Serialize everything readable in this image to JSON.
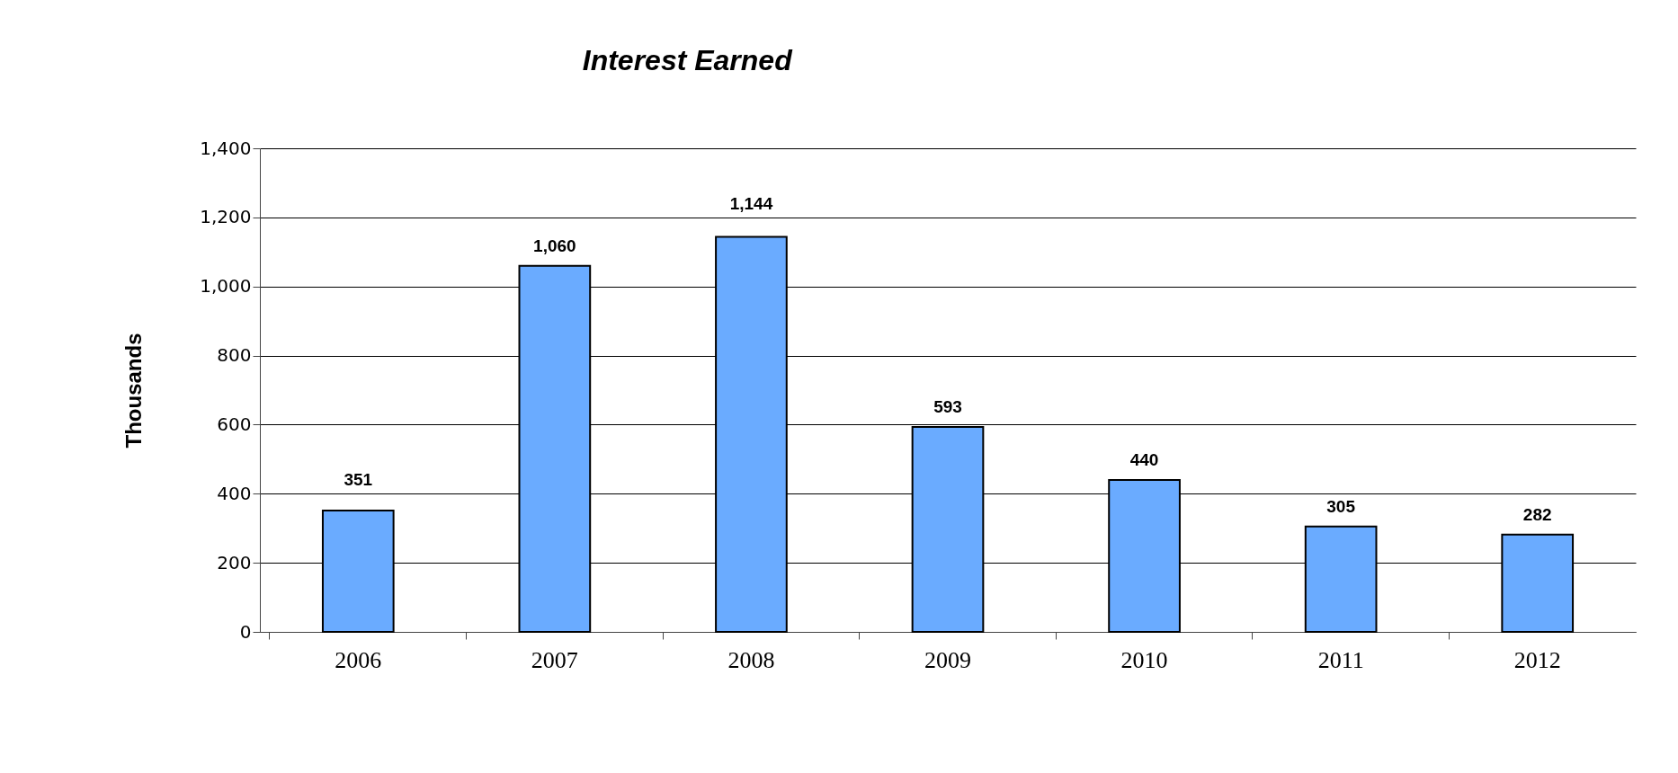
{
  "chart_data": {
    "type": "bar",
    "title": "Interest Earned",
    "ylabel": "Thousands",
    "categories": [
      "2006",
      "2007",
      "2008",
      "2009",
      "2010",
      "2011",
      "2012"
    ],
    "values": [
      351,
      1060,
      1144,
      593,
      440,
      305,
      282
    ],
    "value_labels": [
      "351",
      "1,060",
      "1,144",
      "593",
      "440",
      "305",
      "282"
    ],
    "color": "#6aabff",
    "ylim": [
      0,
      1400
    ],
    "yticks": [
      0,
      200,
      400,
      600,
      800,
      {
        "value": 1000,
        "label": "1,000"
      },
      {
        "value": 1200,
        "label": "1,200"
      },
      {
        "value": 1400,
        "label": "1,400"
      }
    ],
    "grid": "y"
  }
}
